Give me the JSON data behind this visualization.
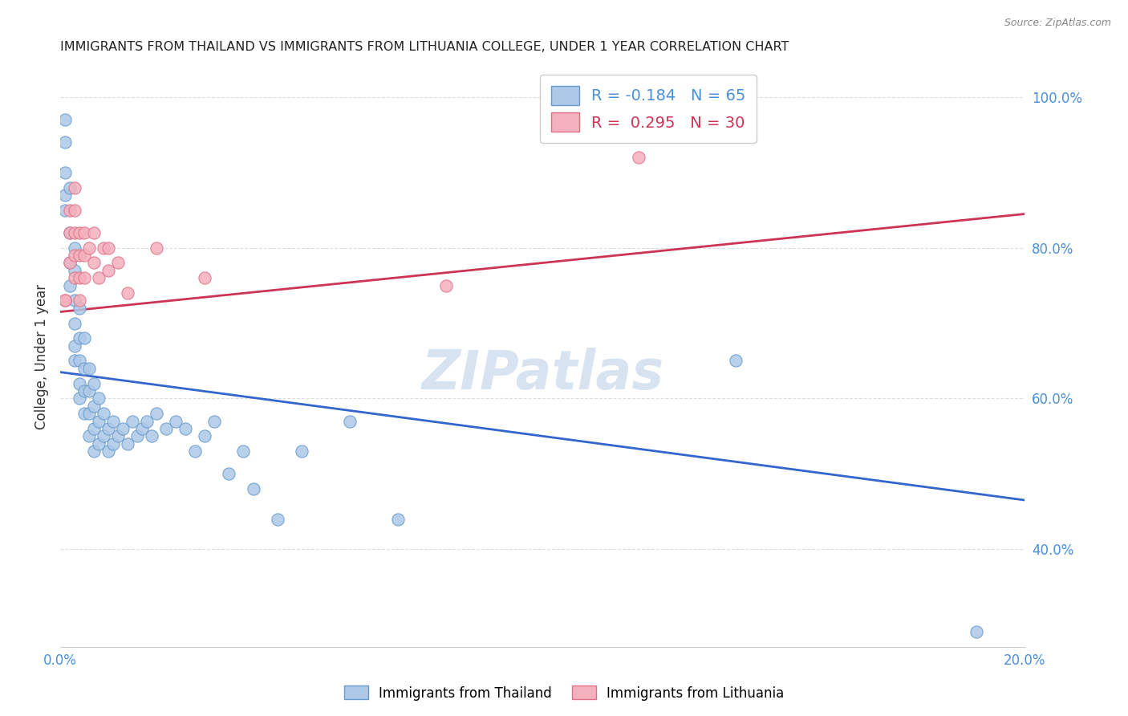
{
  "title": "IMMIGRANTS FROM THAILAND VS IMMIGRANTS FROM LITHUANIA COLLEGE, UNDER 1 YEAR CORRELATION CHART",
  "source": "Source: ZipAtlas.com",
  "ylabel": "College, Under 1 year",
  "x_min": 0.0,
  "x_max": 0.2,
  "y_min": 0.27,
  "y_max": 1.04,
  "y_ticks": [
    0.4,
    0.6,
    0.8,
    1.0
  ],
  "y_tick_labels": [
    "40.0%",
    "60.0%",
    "80.0%",
    "100.0%"
  ],
  "x_ticks": [
    0.0,
    0.2
  ],
  "x_tick_labels": [
    "0.0%",
    "20.0%"
  ],
  "background_color": "#ffffff",
  "grid_color": "#dddddd",
  "watermark": "ZIPatlas",
  "watermark_color": "#c8d8ec",
  "series_thailand": {
    "scatter_color": "#adc8e8",
    "scatter_edge_color": "#6699cc",
    "line_color": "#3366cc",
    "R": -0.184,
    "N": 65,
    "x": [
      0.001,
      0.001,
      0.001,
      0.001,
      0.001,
      0.002,
      0.002,
      0.002,
      0.002,
      0.003,
      0.003,
      0.003,
      0.003,
      0.003,
      0.003,
      0.004,
      0.004,
      0.004,
      0.004,
      0.004,
      0.005,
      0.005,
      0.005,
      0.005,
      0.006,
      0.006,
      0.006,
      0.006,
      0.007,
      0.007,
      0.007,
      0.007,
      0.008,
      0.008,
      0.008,
      0.009,
      0.009,
      0.01,
      0.01,
      0.011,
      0.011,
      0.012,
      0.013,
      0.014,
      0.015,
      0.016,
      0.017,
      0.018,
      0.019,
      0.02,
      0.022,
      0.024,
      0.026,
      0.028,
      0.03,
      0.032,
      0.035,
      0.038,
      0.04,
      0.045,
      0.05,
      0.06,
      0.07,
      0.14,
      0.19
    ],
    "y": [
      0.97,
      0.94,
      0.9,
      0.87,
      0.85,
      0.88,
      0.82,
      0.78,
      0.75,
      0.8,
      0.77,
      0.73,
      0.7,
      0.67,
      0.65,
      0.72,
      0.68,
      0.65,
      0.62,
      0.6,
      0.68,
      0.64,
      0.61,
      0.58,
      0.64,
      0.61,
      0.58,
      0.55,
      0.62,
      0.59,
      0.56,
      0.53,
      0.6,
      0.57,
      0.54,
      0.58,
      0.55,
      0.56,
      0.53,
      0.57,
      0.54,
      0.55,
      0.56,
      0.54,
      0.57,
      0.55,
      0.56,
      0.57,
      0.55,
      0.58,
      0.56,
      0.57,
      0.56,
      0.53,
      0.55,
      0.57,
      0.5,
      0.53,
      0.48,
      0.44,
      0.53,
      0.57,
      0.44,
      0.65,
      0.29
    ]
  },
  "series_lithuania": {
    "scatter_color": "#f4b0bc",
    "scatter_edge_color": "#e07088",
    "line_color": "#cc3355",
    "R": 0.295,
    "N": 30,
    "x": [
      0.001,
      0.001,
      0.002,
      0.002,
      0.002,
      0.003,
      0.003,
      0.003,
      0.003,
      0.003,
      0.004,
      0.004,
      0.004,
      0.004,
      0.005,
      0.005,
      0.005,
      0.006,
      0.007,
      0.007,
      0.008,
      0.009,
      0.01,
      0.01,
      0.012,
      0.014,
      0.02,
      0.03,
      0.08,
      0.12
    ],
    "y": [
      0.73,
      0.73,
      0.85,
      0.82,
      0.78,
      0.88,
      0.85,
      0.82,
      0.79,
      0.76,
      0.82,
      0.79,
      0.76,
      0.73,
      0.82,
      0.79,
      0.76,
      0.8,
      0.82,
      0.78,
      0.76,
      0.8,
      0.8,
      0.77,
      0.78,
      0.74,
      0.8,
      0.76,
      0.75,
      0.92
    ]
  },
  "line_thailand": {
    "x0": 0.0,
    "y0": 0.635,
    "x1": 0.2,
    "y1": 0.465
  },
  "line_lithuania": {
    "x0": 0.0,
    "y0": 0.715,
    "x1": 0.2,
    "y1": 0.845
  }
}
